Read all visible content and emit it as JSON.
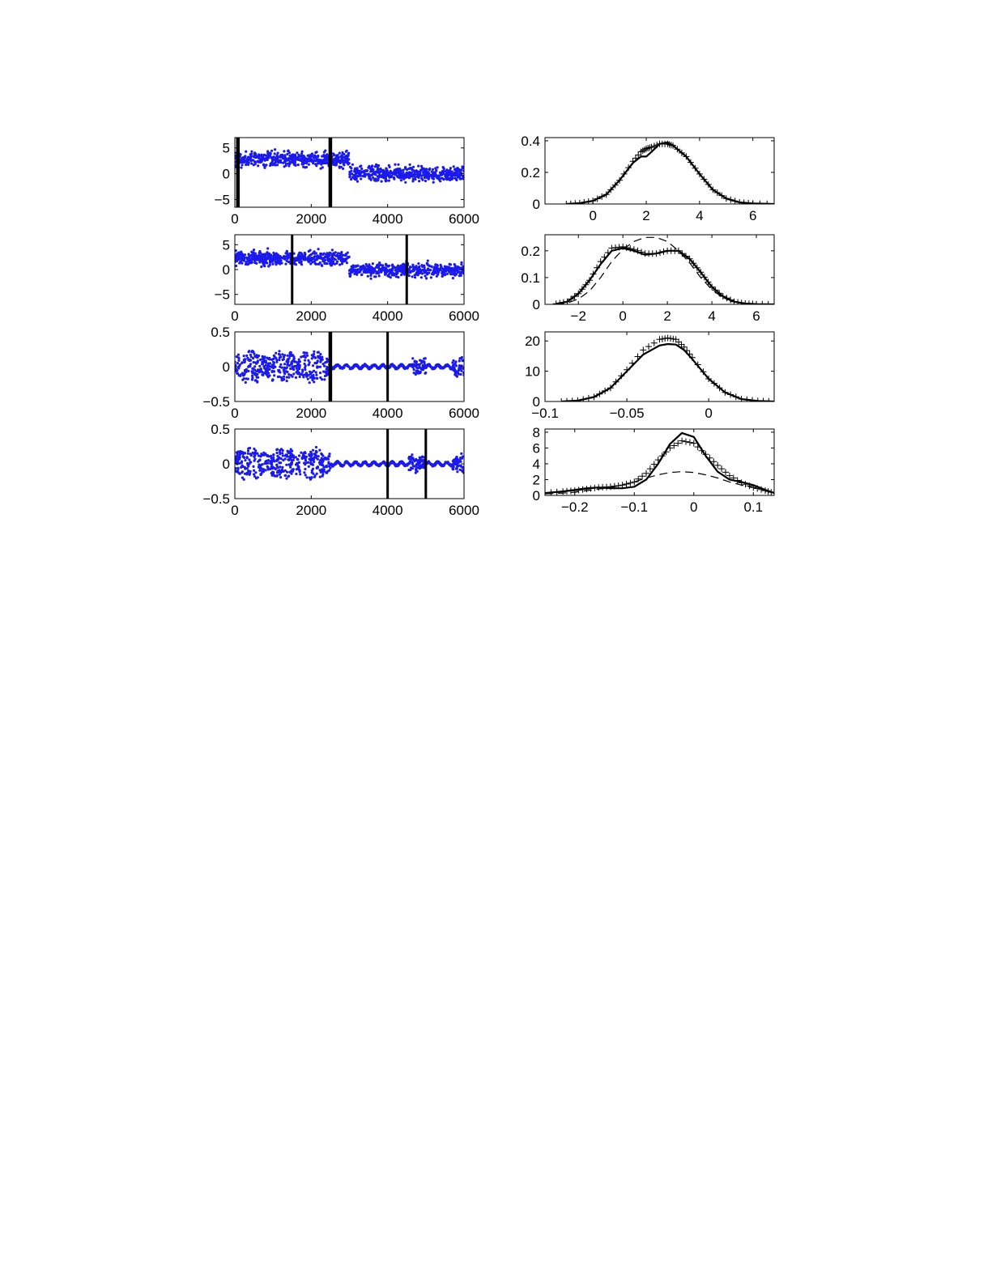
{
  "colors": {
    "scatter": "#1a1aee",
    "axis": "#000000",
    "curve": "#000000"
  },
  "chart_data": [
    {
      "id": "ts1",
      "type": "scatter",
      "xlim": [
        0,
        6000
      ],
      "ylim": [
        -6.5,
        7
      ],
      "xticks": [
        "0",
        "2000",
        "4000",
        "6000"
      ],
      "yticks": [
        "5",
        "0",
        "−5"
      ],
      "xtick_values": [
        0,
        2000,
        4000,
        6000
      ],
      "ytick_values": [
        5,
        0,
        -5
      ],
      "segments": [
        {
          "x": [
            0,
            3000
          ],
          "mean": 2.8,
          "spread": 1.3
        },
        {
          "x": [
            3000,
            6000
          ],
          "mean": 0.0,
          "spread": 1.3
        }
      ],
      "changepoints": [
        80,
        2500
      ],
      "changepoint_weights": [
        "thick",
        "thick"
      ]
    },
    {
      "id": "ts2",
      "type": "scatter",
      "xlim": [
        0,
        6000
      ],
      "ylim": [
        -7,
        7
      ],
      "xticks": [
        "0",
        "2000",
        "4000",
        "6000"
      ],
      "yticks": [
        "5",
        "0",
        "−5"
      ],
      "xtick_values": [
        0,
        2000,
        4000,
        6000
      ],
      "ytick_values": [
        5,
        0,
        -5
      ],
      "segments": [
        {
          "x": [
            0,
            3000
          ],
          "mean": 2.3,
          "spread": 1.2
        },
        {
          "x": [
            3000,
            6000
          ],
          "mean": -0.1,
          "spread": 1.2
        }
      ],
      "changepoints": [
        1500,
        4500
      ],
      "changepoint_weights": [
        "thin",
        "thin"
      ]
    },
    {
      "id": "ts3",
      "type": "scatter",
      "xlim": [
        0,
        6000
      ],
      "ylim": [
        -0.5,
        0.5
      ],
      "xticks": [
        "0",
        "2000",
        "4000",
        "6000"
      ],
      "yticks": [
        "0.5",
        "0",
        "−0.5"
      ],
      "xtick_values": [
        0,
        2000,
        4000,
        6000
      ],
      "ytick_values": [
        0.5,
        0,
        -0.5
      ],
      "segments": [
        {
          "x": [
            0,
            2500
          ],
          "mean": 0.0,
          "spread": 0.22
        },
        {
          "x": [
            2500,
            4650
          ],
          "mean": 0.0,
          "spread": 0.04
        },
        {
          "x": [
            4650,
            5000
          ],
          "mean": 0.0,
          "spread": 0.17
        },
        {
          "x": [
            5000,
            5700
          ],
          "mean": 0.0,
          "spread": 0.05
        },
        {
          "x": [
            5700,
            6000
          ],
          "mean": 0.0,
          "spread": 0.18
        }
      ],
      "changepoints": [
        2500,
        4000
      ],
      "changepoint_weights": [
        "thick",
        "thin"
      ]
    },
    {
      "id": "ts4",
      "type": "scatter",
      "xlim": [
        0,
        6000
      ],
      "ylim": [
        -0.5,
        0.5
      ],
      "xticks": [
        "0",
        "2000",
        "4000",
        "6000"
      ],
      "yticks": [
        "0.5",
        "0",
        "−0.5"
      ],
      "xtick_values": [
        0,
        2000,
        4000,
        6000
      ],
      "ytick_values": [
        0.5,
        0,
        -0.5
      ],
      "segments": [
        {
          "x": [
            0,
            2500
          ],
          "mean": 0.0,
          "spread": 0.22
        },
        {
          "x": [
            2500,
            4550
          ],
          "mean": 0.0,
          "spread": 0.04
        },
        {
          "x": [
            4550,
            5000
          ],
          "mean": 0.0,
          "spread": 0.14
        },
        {
          "x": [
            5000,
            5700
          ],
          "mean": 0.0,
          "spread": 0.05
        },
        {
          "x": [
            5700,
            6000
          ],
          "mean": 0.0,
          "spread": 0.18
        }
      ],
      "changepoints": [
        4000,
        5000
      ],
      "changepoint_weights": [
        "thin",
        "thin"
      ]
    },
    {
      "id": "d1",
      "type": "line",
      "xlim": [
        -1.8,
        6.8
      ],
      "ylim": [
        0,
        0.42
      ],
      "xticks": [
        "0",
        "2",
        "4",
        "6"
      ],
      "yticks": [
        "0.4",
        "0.2",
        "0"
      ],
      "xtick_values": [
        0,
        2,
        4,
        6
      ],
      "ytick_values": [
        0.4,
        0.2,
        0
      ],
      "x": [
        -1.0,
        -0.5,
        0.0,
        0.5,
        1.0,
        1.5,
        1.8,
        2.0,
        2.2,
        2.5,
        2.8,
        3.0,
        3.5,
        4.0,
        4.5,
        5.0,
        5.5,
        6.0,
        6.8
      ],
      "series": [
        {
          "name": "",
          "style": "solid",
          "values": [
            0.0,
            0.005,
            0.02,
            0.06,
            0.15,
            0.26,
            0.3,
            0.3,
            0.33,
            0.38,
            0.39,
            0.37,
            0.3,
            0.19,
            0.09,
            0.035,
            0.01,
            0.003,
            0.0
          ]
        },
        {
          "name": "",
          "style": "markers",
          "values": [
            0.0,
            0.005,
            0.02,
            0.06,
            0.15,
            0.27,
            0.33,
            0.35,
            0.36,
            0.38,
            0.38,
            0.37,
            0.3,
            0.19,
            0.09,
            0.035,
            0.01,
            0.003,
            0.0
          ]
        }
      ]
    },
    {
      "id": "d2",
      "type": "line",
      "xlim": [
        -3.5,
        6.8
      ],
      "ylim": [
        0,
        0.26
      ],
      "xticks": [
        "−2",
        "0",
        "2",
        "4",
        "6"
      ],
      "yticks": [
        "0.2",
        "0.1",
        "0"
      ],
      "xtick_values": [
        -2,
        0,
        2,
        4,
        6
      ],
      "ytick_values": [
        0.2,
        0.1,
        0
      ],
      "x": [
        -3.0,
        -2.5,
        -2.0,
        -1.5,
        -1.0,
        -0.5,
        0.0,
        0.5,
        1.0,
        1.5,
        2.0,
        2.5,
        3.0,
        3.5,
        4.0,
        4.5,
        5.0,
        5.5,
        6.0,
        6.8
      ],
      "series": [
        {
          "name": "",
          "style": "solid",
          "values": [
            0.002,
            0.01,
            0.04,
            0.09,
            0.15,
            0.2,
            0.21,
            0.2,
            0.185,
            0.19,
            0.2,
            0.2,
            0.17,
            0.12,
            0.065,
            0.03,
            0.01,
            0.003,
            0.001,
            0.0
          ]
        },
        {
          "name": "",
          "style": "dashed",
          "values": [
            0.001,
            0.005,
            0.02,
            0.05,
            0.1,
            0.16,
            0.205,
            0.235,
            0.25,
            0.25,
            0.235,
            0.2,
            0.155,
            0.1,
            0.055,
            0.025,
            0.009,
            0.003,
            0.001,
            0.0
          ]
        },
        {
          "name": "",
          "style": "markers",
          "values": [
            0.002,
            0.01,
            0.04,
            0.09,
            0.16,
            0.21,
            0.215,
            0.205,
            0.19,
            0.19,
            0.2,
            0.2,
            0.17,
            0.12,
            0.065,
            0.03,
            0.01,
            0.003,
            0.001,
            0.0
          ]
        }
      ]
    },
    {
      "id": "d3",
      "type": "line",
      "xlim": [
        -0.1,
        0.04
      ],
      "ylim": [
        0,
        23
      ],
      "xticks": [
        "−0.1",
        "−0.05",
        "0"
      ],
      "yticks": [
        "20",
        "10",
        "0"
      ],
      "xtick_values": [
        -0.1,
        -0.05,
        0
      ],
      "ytick_values": [
        20,
        10,
        0
      ],
      "x": [
        -0.09,
        -0.08,
        -0.07,
        -0.06,
        -0.05,
        -0.04,
        -0.03,
        -0.025,
        -0.02,
        -0.015,
        -0.01,
        0.0,
        0.01,
        0.02,
        0.03,
        0.04
      ],
      "series": [
        {
          "name": "",
          "style": "solid",
          "values": [
            0.0,
            0.3,
            1.5,
            4.5,
            10.0,
            15.5,
            18.5,
            19.0,
            18.8,
            17.0,
            14.0,
            7.5,
            3.0,
            0.8,
            0.2,
            0.0
          ]
        },
        {
          "name": "",
          "style": "markers",
          "values": [
            0.0,
            0.3,
            1.5,
            4.5,
            10.5,
            17.0,
            20.5,
            21.0,
            20.5,
            18.0,
            14.5,
            7.5,
            3.0,
            0.8,
            0.2,
            0.0
          ]
        }
      ]
    },
    {
      "id": "d4",
      "type": "line",
      "xlim": [
        -0.25,
        0.135
      ],
      "ylim": [
        0,
        8.4
      ],
      "xticks": [
        "−0.2",
        "−0.1",
        "0",
        "0.1"
      ],
      "yticks": [
        "8",
        "6",
        "4",
        "2",
        "0"
      ],
      "xtick_values": [
        -0.2,
        -0.1,
        0,
        0.1
      ],
      "ytick_values": [
        8,
        6,
        4,
        2,
        0
      ],
      "x": [
        -0.25,
        -0.22,
        -0.2,
        -0.18,
        -0.16,
        -0.14,
        -0.12,
        -0.1,
        -0.08,
        -0.06,
        -0.04,
        -0.02,
        0.0,
        0.02,
        0.04,
        0.06,
        0.08,
        0.1,
        0.12,
        0.135
      ],
      "series": [
        {
          "name": "",
          "style": "solid",
          "values": [
            0.3,
            0.5,
            0.7,
            0.9,
            1.0,
            0.9,
            0.9,
            1.1,
            2.0,
            4.0,
            6.5,
            7.9,
            7.4,
            5.0,
            3.0,
            2.0,
            1.7,
            1.3,
            0.7,
            0.3
          ]
        },
        {
          "name": "",
          "style": "dashed",
          "values": [
            0.2,
            0.3,
            0.4,
            0.6,
            0.8,
            1.0,
            1.3,
            1.7,
            2.2,
            2.6,
            2.9,
            3.0,
            2.9,
            2.6,
            2.2,
            1.7,
            1.3,
            1.0,
            0.6,
            0.4
          ]
        },
        {
          "name": "",
          "style": "markers",
          "values": [
            0.3,
            0.5,
            0.6,
            0.8,
            1.0,
            1.1,
            1.3,
            1.7,
            2.8,
            4.5,
            6.0,
            6.9,
            6.6,
            5.2,
            3.8,
            2.5,
            1.6,
            1.0,
            0.6,
            0.3
          ]
        }
      ]
    }
  ]
}
